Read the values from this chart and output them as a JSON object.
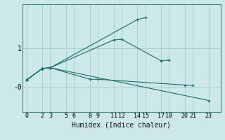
{
  "xlabel": "Humidex (Indice chaleur)",
  "background_color": "#cce8e8",
  "grid_color": "#aacfcf",
  "line_color": "#1a6e6a",
  "series": [
    {
      "x": [
        0,
        2,
        3,
        14,
        15
      ],
      "y": [
        0.18,
        0.48,
        0.5,
        1.75,
        1.8
      ]
    },
    {
      "x": [
        0,
        2,
        3,
        11,
        12,
        17,
        18
      ],
      "y": [
        0.18,
        0.48,
        0.5,
        1.22,
        1.24,
        0.68,
        0.7
      ]
    },
    {
      "x": [
        0,
        2,
        3,
        8,
        9,
        20,
        21
      ],
      "y": [
        0.18,
        0.48,
        0.5,
        0.2,
        0.2,
        0.05,
        0.04
      ]
    },
    {
      "x": [
        0,
        2,
        3,
        23
      ],
      "y": [
        0.18,
        0.48,
        0.5,
        -0.35
      ]
    }
  ],
  "xlim": [
    -0.5,
    24.5
  ],
  "ylim": [
    -0.65,
    2.15
  ],
  "xticks": [
    0,
    2,
    3,
    5,
    6,
    8,
    9,
    11,
    12,
    14,
    15,
    17,
    18,
    20,
    21,
    23
  ],
  "ytick_positions": [
    0.0,
    1.0
  ],
  "ytick_labels": [
    "-0",
    "1"
  ],
  "ylabel_fontsize": 7,
  "xlabel_fontsize": 7,
  "tick_fontsize": 6
}
